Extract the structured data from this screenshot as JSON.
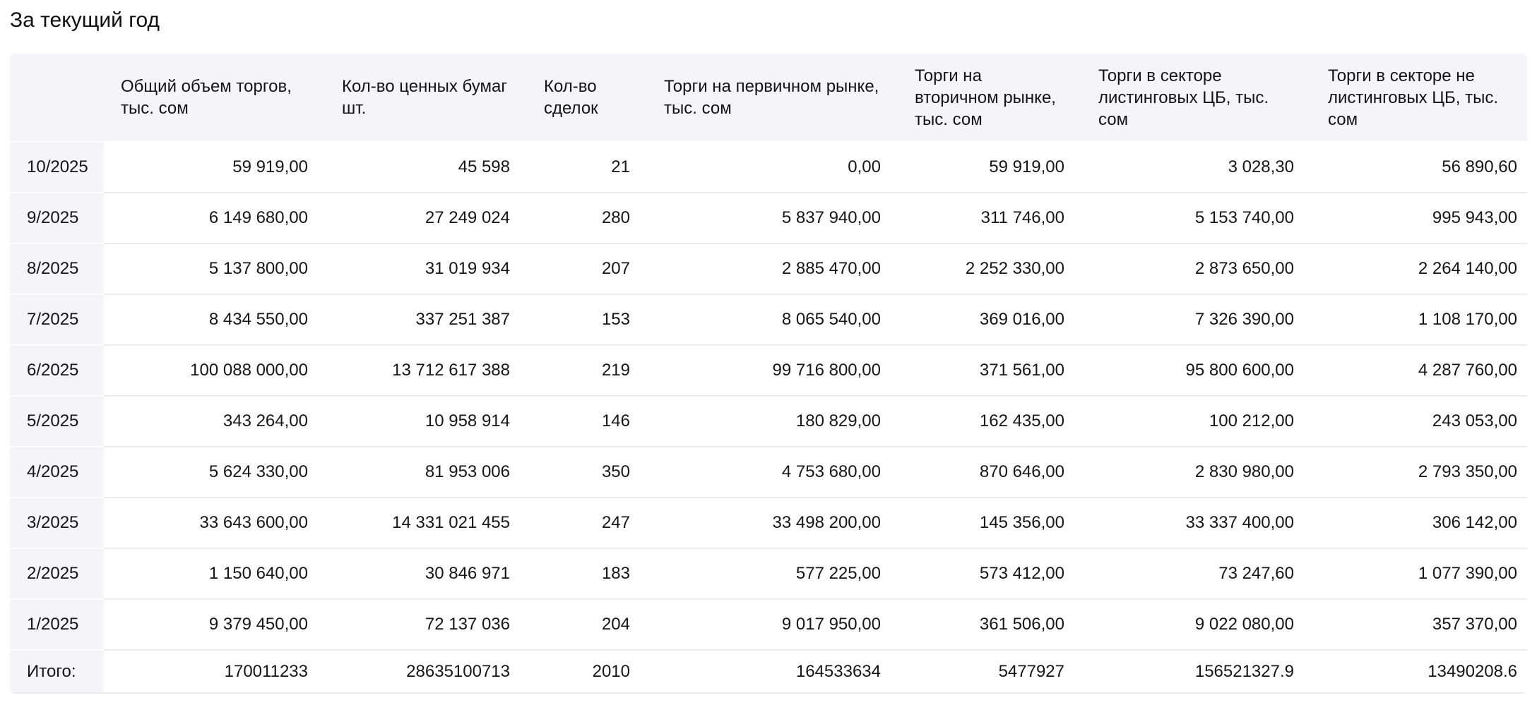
{
  "page": {
    "title": "За текущий год"
  },
  "table": {
    "columns": [
      {
        "label": ""
      },
      {
        "label": "Общий объем торгов, тыс. сом"
      },
      {
        "label": "Кол-во ценных бумаг шт."
      },
      {
        "label": "Кол-во сделок"
      },
      {
        "label": "Торги на первичном рынке, тыс. сом"
      },
      {
        "label": "Торги на вторичном рынке, тыс. сом"
      },
      {
        "label": "Торги в секторе листинговых ЦБ, тыс. сом"
      },
      {
        "label": "Торги в секторе не листинговых ЦБ, тыс. сом"
      }
    ],
    "rows": [
      {
        "period": "10/2025",
        "cells": [
          "59 919,00",
          "45 598",
          "21",
          "0,00",
          "59 919,00",
          "3 028,30",
          "56 890,60"
        ]
      },
      {
        "period": "9/2025",
        "cells": [
          "6 149 680,00",
          "27 249 024",
          "280",
          "5 837 940,00",
          "311 746,00",
          "5 153 740,00",
          "995 943,00"
        ]
      },
      {
        "period": "8/2025",
        "cells": [
          "5 137 800,00",
          "31 019 934",
          "207",
          "2 885 470,00",
          "2 252 330,00",
          "2 873 650,00",
          "2 264 140,00"
        ]
      },
      {
        "period": "7/2025",
        "cells": [
          "8 434 550,00",
          "337 251 387",
          "153",
          "8 065 540,00",
          "369 016,00",
          "7 326 390,00",
          "1 108 170,00"
        ]
      },
      {
        "period": "6/2025",
        "cells": [
          "100 088 000,00",
          "13 712 617 388",
          "219",
          "99 716 800,00",
          "371 561,00",
          "95 800 600,00",
          "4 287 760,00"
        ]
      },
      {
        "period": "5/2025",
        "cells": [
          "343 264,00",
          "10 958 914",
          "146",
          "180 829,00",
          "162 435,00",
          "100 212,00",
          "243 053,00"
        ]
      },
      {
        "period": "4/2025",
        "cells": [
          "5 624 330,00",
          "81 953 006",
          "350",
          "4 753 680,00",
          "870 646,00",
          "2 830 980,00",
          "2 793 350,00"
        ]
      },
      {
        "period": "3/2025",
        "cells": [
          "33 643 600,00",
          "14 331 021 455",
          "247",
          "33 498 200,00",
          "145 356,00",
          "33 337 400,00",
          "306 142,00"
        ]
      },
      {
        "period": "2/2025",
        "cells": [
          "1 150 640,00",
          "30 846 971",
          "183",
          "577 225,00",
          "573 412,00",
          "73 247,60",
          "1 077 390,00"
        ]
      },
      {
        "period": "1/2025",
        "cells": [
          "9 379 450,00",
          "72 137 036",
          "204",
          "9 017 950,00",
          "361 506,00",
          "9 022 080,00",
          "357 370,00"
        ]
      }
    ],
    "total": {
      "label": "Итого:",
      "cells": [
        "170011233",
        "28635100713",
        "2010",
        "164533634",
        "5477927",
        "156521327.9",
        "13490208.6"
      ]
    }
  },
  "colors": {
    "header_bg": "#f5f5f7",
    "row_border": "#ebebed",
    "text": "#161616"
  }
}
